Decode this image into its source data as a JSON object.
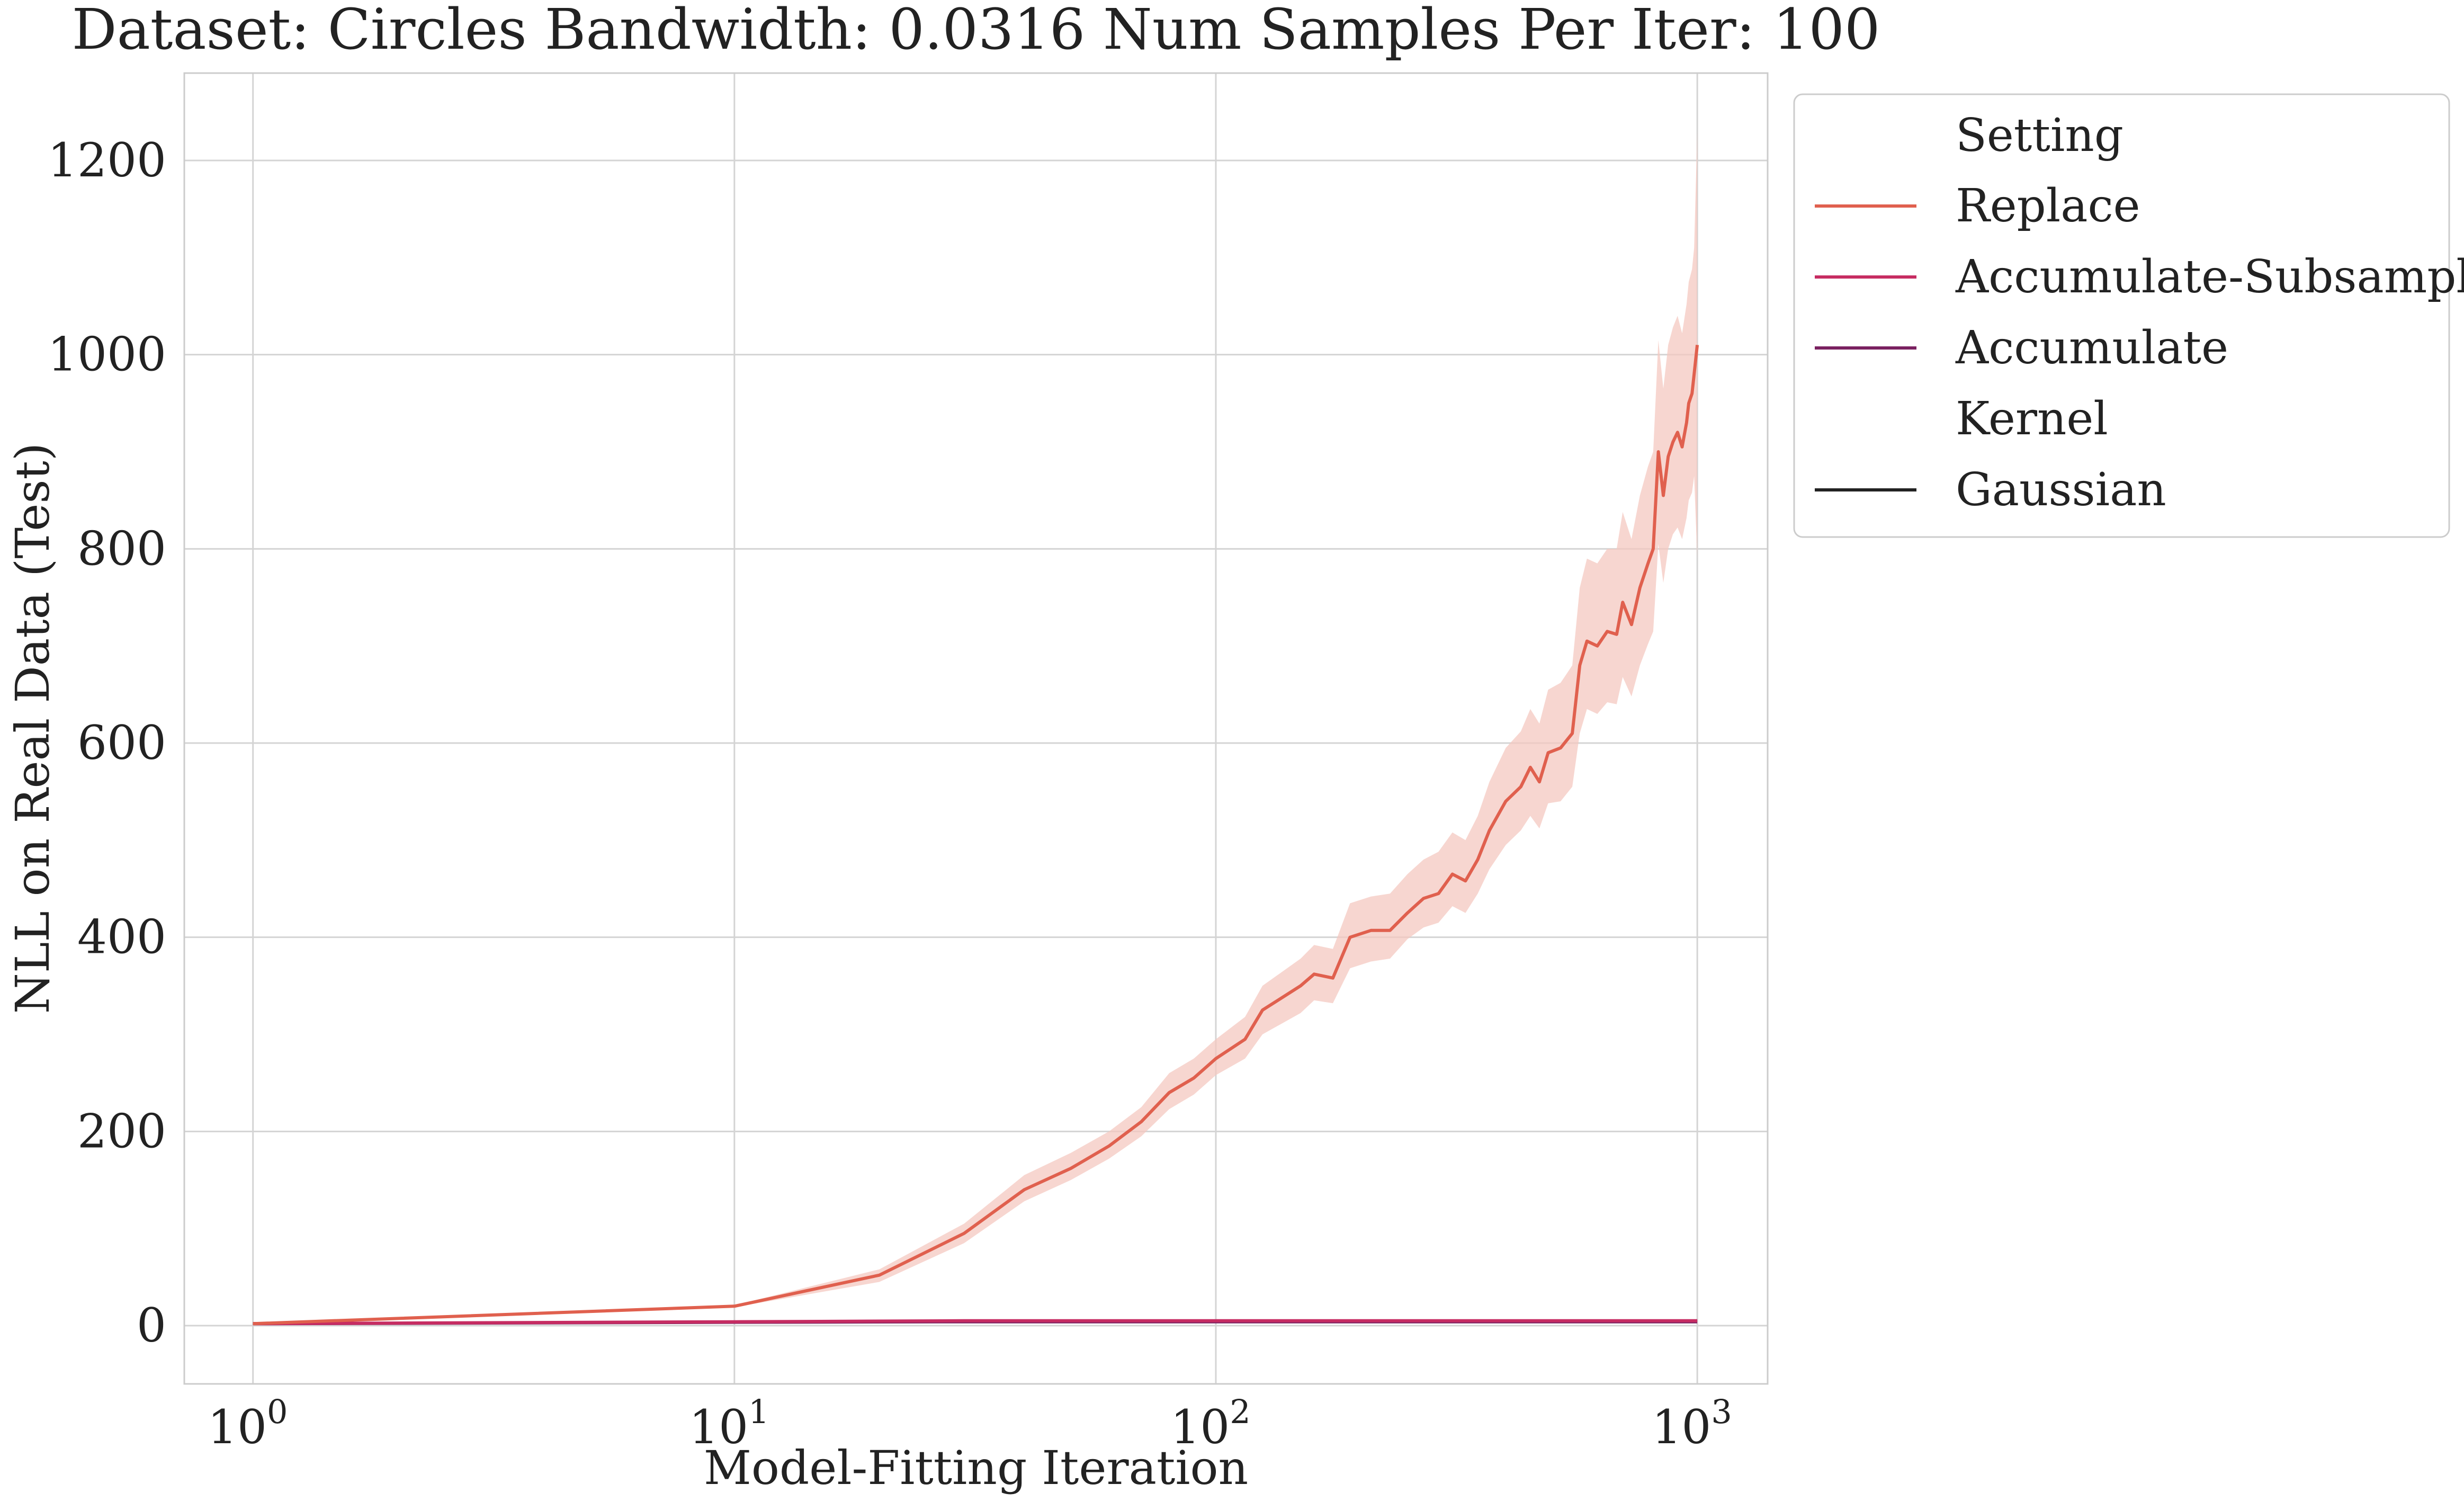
{
  "chart_data": {
    "type": "line",
    "title": "Dataset: Circles Bandwidth: 0.0316 Num Samples Per Iter: 100",
    "xlabel": "Model-Fitting Iteration",
    "ylabel": "NLL on Real Data (Test)",
    "x_scale": "log",
    "xlim": [
      0.72,
      1400
    ],
    "ylim": [
      -60,
      1290
    ],
    "x_ticks": [
      {
        "value": 1,
        "base": "10",
        "exp": "0"
      },
      {
        "value": 10,
        "base": "10",
        "exp": "1"
      },
      {
        "value": 100,
        "base": "10",
        "exp": "2"
      },
      {
        "value": 1000,
        "base": "10",
        "exp": "3"
      }
    ],
    "y_ticks": [
      0,
      200,
      400,
      600,
      800,
      1000,
      1200
    ],
    "grid": true,
    "legend": {
      "placement": "outside-right",
      "groups": [
        {
          "title": "Setting",
          "entries": [
            {
              "label": "Replace",
              "color": "#e0604e"
            },
            {
              "label": "Accumulate-Subsample",
              "color": "#c62c62"
            },
            {
              "label": "Accumulate",
              "color": "#7a2160"
            }
          ]
        },
        {
          "title": "Kernel",
          "entries": [
            {
              "label": "Gaussian",
              "color": "#222222"
            }
          ]
        }
      ]
    },
    "series": [
      {
        "name": "Replace",
        "color": "#e0604e",
        "band_color": "#f4c8c0",
        "points": [
          [
            1,
            2,
            2,
            2
          ],
          [
            10,
            20,
            19,
            21
          ],
          [
            20,
            52,
            45,
            58
          ],
          [
            30,
            95,
            85,
            105
          ],
          [
            40,
            140,
            128,
            155
          ],
          [
            50,
            162,
            150,
            178
          ],
          [
            60,
            185,
            172,
            200
          ],
          [
            70,
            210,
            195,
            225
          ],
          [
            80,
            240,
            223,
            260
          ],
          [
            90,
            255,
            238,
            275
          ],
          [
            100,
            275,
            258,
            295
          ],
          [
            115,
            295,
            275,
            318
          ],
          [
            125,
            325,
            300,
            350
          ],
          [
            150,
            350,
            322,
            378
          ],
          [
            160,
            362,
            335,
            392
          ],
          [
            175,
            358,
            332,
            388
          ],
          [
            190,
            400,
            368,
            435
          ],
          [
            210,
            407,
            375,
            442
          ],
          [
            230,
            407,
            378,
            445
          ],
          [
            250,
            425,
            398,
            465
          ],
          [
            270,
            440,
            410,
            480
          ],
          [
            290,
            445,
            415,
            488
          ],
          [
            310,
            465,
            432,
            508
          ],
          [
            330,
            458,
            425,
            500
          ],
          [
            350,
            480,
            445,
            525
          ],
          [
            370,
            510,
            470,
            560
          ],
          [
            400,
            540,
            495,
            595
          ],
          [
            430,
            555,
            510,
            612
          ],
          [
            450,
            575,
            525,
            635
          ],
          [
            470,
            560,
            512,
            620
          ],
          [
            490,
            590,
            538,
            655
          ],
          [
            520,
            595,
            540,
            662
          ],
          [
            550,
            610,
            555,
            680
          ],
          [
            570,
            680,
            610,
            760
          ],
          [
            590,
            705,
            635,
            790
          ],
          [
            620,
            700,
            630,
            785
          ],
          [
            650,
            715,
            642,
            800
          ],
          [
            680,
            712,
            640,
            800
          ],
          [
            700,
            745,
            668,
            838
          ],
          [
            730,
            722,
            648,
            810
          ],
          [
            760,
            760,
            680,
            855
          ],
          [
            790,
            785,
            702,
            885
          ],
          [
            810,
            800,
            715,
            900
          ],
          [
            830,
            900,
            805,
            1015
          ],
          [
            850,
            855,
            765,
            965
          ],
          [
            870,
            895,
            800,
            1010
          ],
          [
            890,
            910,
            815,
            1028
          ],
          [
            910,
            920,
            822,
            1040
          ],
          [
            930,
            905,
            810,
            1022
          ],
          [
            950,
            930,
            832,
            1052
          ],
          [
            960,
            950,
            850,
            1075
          ],
          [
            975,
            960,
            858,
            1088
          ],
          [
            985,
            980,
            875,
            1110
          ],
          [
            1000,
            1010,
            790,
            1230
          ]
        ]
      },
      {
        "name": "Accumulate-Subsample",
        "color": "#c62c62",
        "points": [
          [
            1,
            2
          ],
          [
            10,
            4
          ],
          [
            30,
            5
          ],
          [
            100,
            5
          ],
          [
            300,
            5
          ],
          [
            1000,
            5
          ]
        ]
      },
      {
        "name": "Accumulate",
        "color": "#7a2160",
        "points": [
          [
            1,
            2
          ],
          [
            10,
            3.5
          ],
          [
            30,
            4
          ],
          [
            100,
            4
          ],
          [
            300,
            4
          ],
          [
            1000,
            4
          ]
        ]
      }
    ]
  }
}
